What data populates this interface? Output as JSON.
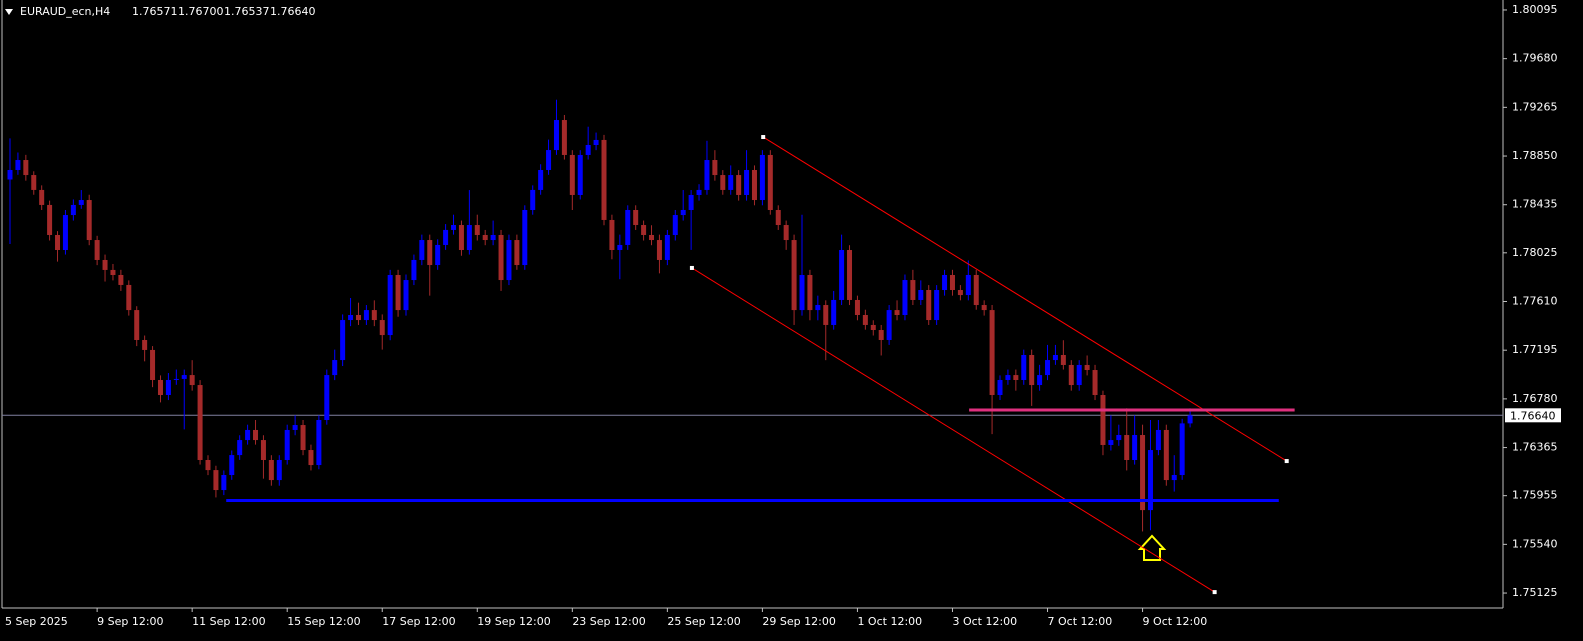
{
  "chart_data": {
    "type": "candlestick",
    "title": "EURAUD_ecn,H4",
    "header_ohlc": [
      "1.76571",
      "1.76700",
      "1.76537",
      "1.76640"
    ],
    "up_color": "#0000ff",
    "down_color": "#a52a2a",
    "ylim": [
      1.75006,
      1.8018
    ],
    "yticks": [
      1.80095,
      {
        "value": 1.7968,
        "label": "1.79680"
      },
      1.79265,
      {
        "value": 1.7885,
        "label": "1.78850"
      },
      1.78435,
      1.78025,
      {
        "value": 1.7761,
        "label": "1.77610"
      },
      1.77195,
      {
        "value": 1.7678,
        "label": "1.76780"
      },
      1.76365,
      1.75955,
      {
        "value": 1.7554,
        "label": "1.75540"
      },
      1.75125
    ],
    "current_price": {
      "value": 1.7664,
      "label": "1.76640"
    },
    "categories": [
      "5 Sep 2025",
      null,
      null,
      null,
      null,
      null,
      null,
      null,
      null,
      null,
      null,
      "9 Sep 12:00",
      null,
      null,
      null,
      null,
      null,
      null,
      null,
      null,
      null,
      null,
      null,
      "11 Sep 12:00",
      null,
      null,
      null,
      null,
      null,
      null,
      null,
      null,
      null,
      null,
      null,
      "15 Sep 12:00",
      null,
      null,
      null,
      null,
      null,
      null,
      null,
      null,
      null,
      null,
      null,
      "17 Sep 12:00",
      null,
      null,
      null,
      null,
      null,
      null,
      null,
      null,
      null,
      null,
      null,
      "19 Sep 12:00",
      null,
      null,
      null,
      null,
      null,
      null,
      null,
      null,
      null,
      null,
      null,
      "23 Sep 12:00",
      null,
      null,
      null,
      null,
      null,
      null,
      null,
      null,
      null,
      null,
      null,
      "25 Sep 12:00",
      null,
      null,
      null,
      null,
      null,
      null,
      null,
      null,
      null,
      null,
      null,
      "29 Sep 12:00",
      null,
      null,
      null,
      null,
      null,
      null,
      null,
      null,
      null,
      null,
      null,
      "1 Oct 12:00",
      null,
      null,
      null,
      null,
      null,
      null,
      null,
      null,
      null,
      null,
      null,
      "3 Oct 12:00",
      null,
      null,
      null,
      null,
      null,
      null,
      null,
      null,
      null,
      null,
      null,
      "7 Oct 12:00",
      null,
      null,
      null,
      null,
      null,
      null,
      null,
      null,
      null,
      null,
      null,
      "9 Oct 12:00",
      null,
      null,
      null,
      null,
      null,
      null
    ],
    "ohlc": [
      [
        1.7865,
        1.79,
        1.781,
        1.78731
      ],
      [
        1.78731,
        1.7888,
        1.7869,
        1.78816
      ],
      [
        1.78816,
        1.7886,
        1.7864,
        1.78688
      ],
      [
        1.78688,
        1.7872,
        1.7852,
        1.78561
      ],
      [
        1.78561,
        1.786,
        1.7839,
        1.78433
      ],
      [
        1.78433,
        1.7847,
        1.7813,
        1.78177
      ],
      [
        1.78177,
        1.7821,
        1.7795,
        1.78049
      ],
      [
        1.78049,
        1.7839,
        1.7801,
        1.78347
      ],
      [
        1.78347,
        1.7848,
        1.783,
        1.78433
      ],
      [
        1.78433,
        1.7856,
        1.784,
        1.78475
      ],
      [
        1.78475,
        1.7852,
        1.7809,
        1.78134
      ],
      [
        1.78134,
        1.7817,
        1.7792,
        1.77964
      ],
      [
        1.77964,
        1.7801,
        1.7778,
        1.77879
      ],
      [
        1.77879,
        1.7793,
        1.7779,
        1.77836
      ],
      [
        1.77836,
        1.7788,
        1.777,
        1.77751
      ],
      [
        1.77751,
        1.7779,
        1.7749,
        1.77537
      ],
      [
        1.77537,
        1.7757,
        1.7723,
        1.77282
      ],
      [
        1.77282,
        1.7732,
        1.771,
        1.77197
      ],
      [
        1.77197,
        1.7723,
        1.7688,
        1.76941
      ],
      [
        1.76941,
        1.7698,
        1.7675,
        1.76813
      ],
      [
        1.76813,
        1.77,
        1.7677,
        1.76941
      ],
      [
        1.76941,
        1.7703,
        1.769,
        1.7695
      ],
      [
        1.7695,
        1.7703,
        1.7652,
        1.76983
      ],
      [
        1.76983,
        1.7711,
        1.7685,
        1.76898
      ],
      [
        1.76898,
        1.7694,
        1.7622,
        1.76259
      ],
      [
        1.76259,
        1.763,
        1.7613,
        1.76173
      ],
      [
        1.76173,
        1.7621,
        1.7594,
        1.76003
      ],
      [
        1.76003,
        1.7617,
        1.7596,
        1.76131
      ],
      [
        1.76131,
        1.7634,
        1.7609,
        1.76301
      ],
      [
        1.76301,
        1.7647,
        1.7626,
        1.76429
      ],
      [
        1.76429,
        1.7656,
        1.7639,
        1.76515
      ],
      [
        1.76515,
        1.766,
        1.7639,
        1.76429
      ],
      [
        1.76429,
        1.7647,
        1.761,
        1.76259
      ],
      [
        1.76259,
        1.763,
        1.7604,
        1.76088
      ],
      [
        1.76088,
        1.763,
        1.7604,
        1.76259
      ],
      [
        1.76259,
        1.7656,
        1.7622,
        1.76515
      ],
      [
        1.76515,
        1.7664,
        1.7647,
        1.76557
      ],
      [
        1.76557,
        1.766,
        1.763,
        1.76344
      ],
      [
        1.76344,
        1.7639,
        1.7617,
        1.76216
      ],
      [
        1.76216,
        1.7664,
        1.7618,
        1.766
      ],
      [
        1.766,
        1.7703,
        1.7656,
        1.76983
      ],
      [
        1.76983,
        1.772,
        1.7694,
        1.77111
      ],
      [
        1.77111,
        1.775,
        1.7706,
        1.77452
      ],
      [
        1.77452,
        1.7764,
        1.774,
        1.77495
      ],
      [
        1.77495,
        1.776,
        1.7741,
        1.77452
      ],
      [
        1.77452,
        1.7758,
        1.7741,
        1.77537
      ],
      [
        1.77537,
        1.7762,
        1.774,
        1.77452
      ],
      [
        1.77452,
        1.775,
        1.772,
        1.77324
      ],
      [
        1.77324,
        1.7788,
        1.7728,
        1.77836
      ],
      [
        1.77836,
        1.7788,
        1.7748,
        1.77537
      ],
      [
        1.77537,
        1.7784,
        1.7749,
        1.77793
      ],
      [
        1.77793,
        1.7801,
        1.7775,
        1.77964
      ],
      [
        1.77964,
        1.7818,
        1.7792,
        1.78134
      ],
      [
        1.78134,
        1.7818,
        1.7766,
        1.77921
      ],
      [
        1.77921,
        1.7814,
        1.7788,
        1.78092
      ],
      [
        1.78092,
        1.7827,
        1.7805,
        1.7822
      ],
      [
        1.7822,
        1.7835,
        1.7818,
        1.78262
      ],
      [
        1.78262,
        1.783,
        1.78,
        1.78049
      ],
      [
        1.78049,
        1.7856,
        1.7801,
        1.78262
      ],
      [
        1.78262,
        1.7835,
        1.7813,
        1.78177
      ],
      [
        1.78177,
        1.7822,
        1.7809,
        1.78134
      ],
      [
        1.78134,
        1.783,
        1.7809,
        1.78177
      ],
      [
        1.78177,
        1.7822,
        1.777,
        1.77793
      ],
      [
        1.77793,
        1.7818,
        1.7775,
        1.78134
      ],
      [
        1.78134,
        1.7818,
        1.7788,
        1.77921
      ],
      [
        1.77921,
        1.7843,
        1.7788,
        1.7839
      ],
      [
        1.7839,
        1.786,
        1.7835,
        1.78561
      ],
      [
        1.78561,
        1.7878,
        1.7852,
        1.78731
      ],
      [
        1.78731,
        1.7899,
        1.7869,
        1.78901
      ],
      [
        1.78901,
        1.7933,
        1.7886,
        1.79157
      ],
      [
        1.79157,
        1.792,
        1.7882,
        1.78859
      ],
      [
        1.78859,
        1.789,
        1.7839,
        1.78518
      ],
      [
        1.78518,
        1.789,
        1.7848,
        1.78859
      ],
      [
        1.78859,
        1.791,
        1.7882,
        1.78944
      ],
      [
        1.78944,
        1.7905,
        1.789,
        1.78987
      ],
      [
        1.78987,
        1.7903,
        1.7826,
        1.78305
      ],
      [
        1.78305,
        1.7835,
        1.7797,
        1.78049
      ],
      [
        1.78049,
        1.7818,
        1.778,
        1.78092
      ],
      [
        1.78092,
        1.7843,
        1.7805,
        1.7839
      ],
      [
        1.7839,
        1.7843,
        1.7822,
        1.78262
      ],
      [
        1.78262,
        1.783,
        1.7813,
        1.78177
      ],
      [
        1.78177,
        1.7826,
        1.7809,
        1.78134
      ],
      [
        1.78134,
        1.7818,
        1.7785,
        1.77964
      ],
      [
        1.77964,
        1.7822,
        1.7792,
        1.78177
      ],
      [
        1.78177,
        1.7839,
        1.7813,
        1.78347
      ],
      [
        1.78347,
        1.7856,
        1.783,
        1.7839
      ],
      [
        1.7839,
        1.7856,
        1.7805,
        1.78518
      ],
      [
        1.78518,
        1.7861,
        1.7847,
        1.78561
      ],
      [
        1.78561,
        1.7898,
        1.7852,
        1.78816
      ],
      [
        1.78816,
        1.789,
        1.7864,
        1.78688
      ],
      [
        1.78688,
        1.7873,
        1.7852,
        1.78561
      ],
      [
        1.78561,
        1.7877,
        1.7852,
        1.78688
      ],
      [
        1.78688,
        1.7873,
        1.7847,
        1.78518
      ],
      [
        1.78518,
        1.789,
        1.7847,
        1.78731
      ],
      [
        1.78731,
        1.7877,
        1.7843,
        1.78475
      ],
      [
        1.78475,
        1.789,
        1.7843,
        1.78859
      ],
      [
        1.78859,
        1.789,
        1.7835,
        1.7839
      ],
      [
        1.7839,
        1.7843,
        1.7822,
        1.78262
      ],
      [
        1.78262,
        1.783,
        1.7805,
        1.78134
      ],
      [
        1.78134,
        1.7818,
        1.7741,
        1.77537
      ],
      [
        1.77537,
        1.7835,
        1.7749,
        1.77836
      ],
      [
        1.77836,
        1.7788,
        1.7745,
        1.77537
      ],
      [
        1.77537,
        1.7766,
        1.7745,
        1.7758
      ],
      [
        1.7758,
        1.7762,
        1.7711,
        1.7741
      ],
      [
        1.7741,
        1.777,
        1.7737,
        1.77623
      ],
      [
        1.77623,
        1.7818,
        1.7758,
        1.78049
      ],
      [
        1.78049,
        1.7809,
        1.7758,
        1.77623
      ],
      [
        1.77623,
        1.7766,
        1.7745,
        1.77495
      ],
      [
        1.77495,
        1.7754,
        1.7737,
        1.7741
      ],
      [
        1.7741,
        1.7745,
        1.7732,
        1.77367
      ],
      [
        1.77367,
        1.7741,
        1.7715,
        1.77282
      ],
      [
        1.77282,
        1.7758,
        1.7724,
        1.77537
      ],
      [
        1.77537,
        1.7762,
        1.7745,
        1.77495
      ],
      [
        1.77495,
        1.7784,
        1.7745,
        1.77793
      ],
      [
        1.77793,
        1.7788,
        1.7758,
        1.77623
      ],
      [
        1.77623,
        1.7779,
        1.7758,
        1.77708
      ],
      [
        1.77708,
        1.7775,
        1.7741,
        1.77452
      ],
      [
        1.77452,
        1.7775,
        1.7741,
        1.77708
      ],
      [
        1.77708,
        1.7788,
        1.7766,
        1.77836
      ],
      [
        1.77836,
        1.7788,
        1.7766,
        1.77708
      ],
      [
        1.77708,
        1.7775,
        1.7762,
        1.77665
      ],
      [
        1.77665,
        1.7796,
        1.7762,
        1.77836
      ],
      [
        1.77836,
        1.7788,
        1.7754,
        1.7758
      ],
      [
        1.7758,
        1.7762,
        1.7749,
        1.77537
      ],
      [
        1.77537,
        1.7758,
        1.7648,
        1.76813
      ],
      [
        1.76813,
        1.7698,
        1.7677,
        1.76941
      ],
      [
        1.76941,
        1.7703,
        1.769,
        1.76983
      ],
      [
        1.76983,
        1.7703,
        1.7685,
        1.76941
      ],
      [
        1.76941,
        1.772,
        1.769,
        1.77154
      ],
      [
        1.77154,
        1.772,
        1.7672,
        1.76898
      ],
      [
        1.76898,
        1.7707,
        1.7685,
        1.76983
      ],
      [
        1.76983,
        1.7724,
        1.7694,
        1.77111
      ],
      [
        1.77111,
        1.7724,
        1.7707,
        1.77154
      ],
      [
        1.77154,
        1.7728,
        1.7703,
        1.77069
      ],
      [
        1.77069,
        1.7711,
        1.7685,
        1.76898
      ],
      [
        1.76898,
        1.7711,
        1.7685,
        1.77069
      ],
      [
        1.77069,
        1.7715,
        1.7698,
        1.77026
      ],
      [
        1.77026,
        1.7707,
        1.7677,
        1.76813
      ],
      [
        1.76813,
        1.7685,
        1.763,
        1.76387
      ],
      [
        1.76387,
        1.7664,
        1.7634,
        1.76429
      ],
      [
        1.76429,
        1.7656,
        1.7638,
        1.76472
      ],
      [
        1.76472,
        1.767,
        1.7617,
        1.76259
      ],
      [
        1.76259,
        1.7664,
        1.7622,
        1.76472
      ],
      [
        1.76472,
        1.7656,
        1.7565,
        1.75832
      ],
      [
        1.75832,
        1.766,
        1.7566,
        1.76344
      ],
      [
        1.76344,
        1.766,
        1.763,
        1.76515
      ],
      [
        1.76515,
        1.7656,
        1.7604,
        1.76088
      ],
      [
        1.76088,
        1.763,
        1.7599,
        1.76131
      ],
      [
        1.76131,
        1.7661,
        1.7609,
        1.76571
      ],
      [
        1.76571,
        1.767,
        1.76537,
        1.7664
      ]
    ],
    "lines": [
      {
        "x": [
          95.1,
          161.2
        ],
        "y": [
          1.79012,
          1.7625
        ],
        "color": "#ff0000",
        "width": 1,
        "anchors": true
      },
      {
        "x": [
          86.1,
          152.1
        ],
        "y": [
          1.77896,
          1.75133
        ],
        "color": "#ff0000",
        "width": 1,
        "anchors": true
      },
      {
        "x": [
          121.1,
          162.2
        ],
        "y": [
          1.76685,
          1.76685
        ],
        "color": "#e0307f",
        "width": 3,
        "anchors": false
      },
      {
        "x": [
          27.3,
          160.2
        ],
        "y": [
          1.75914,
          1.75914
        ],
        "color": "#0000ff",
        "width": 3,
        "anchors": false
      }
    ]
  }
}
